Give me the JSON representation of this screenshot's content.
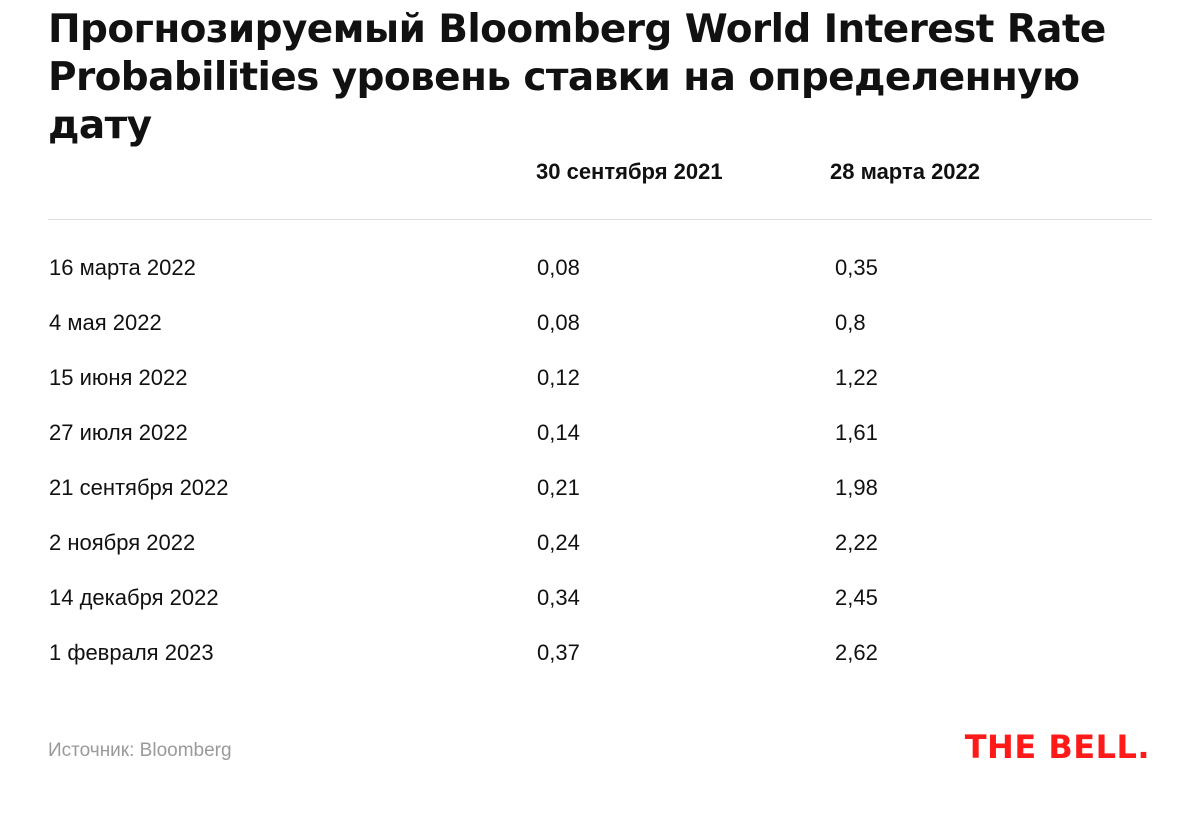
{
  "header": {
    "title": "Прогнозируемый Bloomberg World Interest Rate Probabilities уровень ставки на определенную дату"
  },
  "chart_data": {
    "type": "table",
    "columns": [
      "",
      "30 сентября 2021",
      "28 марта 2022"
    ],
    "rows": [
      [
        "16 марта 2022",
        "0,08",
        "0,35"
      ],
      [
        "4 мая 2022",
        "0,08",
        "0,8"
      ],
      [
        "15 июня 2022",
        "0,12",
        "1,22"
      ],
      [
        "27 июля 2022",
        "0,14",
        "1,61"
      ],
      [
        "21 сентября 2022",
        "0,21",
        "1,98"
      ],
      [
        "2 ноября 2022",
        "0,24",
        "2,22"
      ],
      [
        "14 декабря 2022",
        "0,34",
        "2,45"
      ],
      [
        "1 февраля 2023",
        "0,37",
        "2,62"
      ]
    ]
  },
  "footer": {
    "source": "Источник: Bloomberg",
    "logo_text": "THE BELL.",
    "logo_color": "#ff1a1a"
  }
}
